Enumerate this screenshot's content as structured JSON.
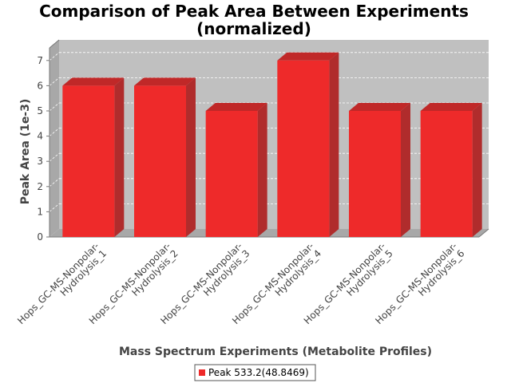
{
  "chart_data": {
    "type": "bar",
    "title_line1": "Comparison of Peak Area Between Experiments",
    "title_line2": "(normalized)",
    "xlabel": "Mass Spectrum Experiments (Metabolite Profiles)",
    "ylabel": "Peak Area (1e-3)",
    "categories": [
      {
        "line1": "Hops_GC-MS-Nonpolar-",
        "line2": "Hydrolysis_1"
      },
      {
        "line1": "Hops_GC-MS-Nonpolar-",
        "line2": "Hydrolysis_2"
      },
      {
        "line1": "Hops_GC-MS-Nonpolar-",
        "line2": "Hydrolysis_3"
      },
      {
        "line1": "Hops_GC-MS-Nonpolar-",
        "line2": "Hydrolysis_4"
      },
      {
        "line1": "Hops_GC-MS-Nonpolar-",
        "line2": "Hydrolysis_5"
      },
      {
        "line1": "Hops_GC-MS-Nonpolar-",
        "line2": "Hydrolysis_6"
      }
    ],
    "series": [
      {
        "name": "Peak 533.2(48.8469)",
        "values": [
          6,
          6,
          5,
          7,
          5,
          5
        ],
        "color": "#ee2a2a"
      }
    ],
    "ylim": [
      0,
      7.5
    ],
    "yticks": [
      0,
      1,
      2,
      3,
      4,
      5,
      6,
      7
    ],
    "grid": true,
    "legend": "bottom-center"
  }
}
